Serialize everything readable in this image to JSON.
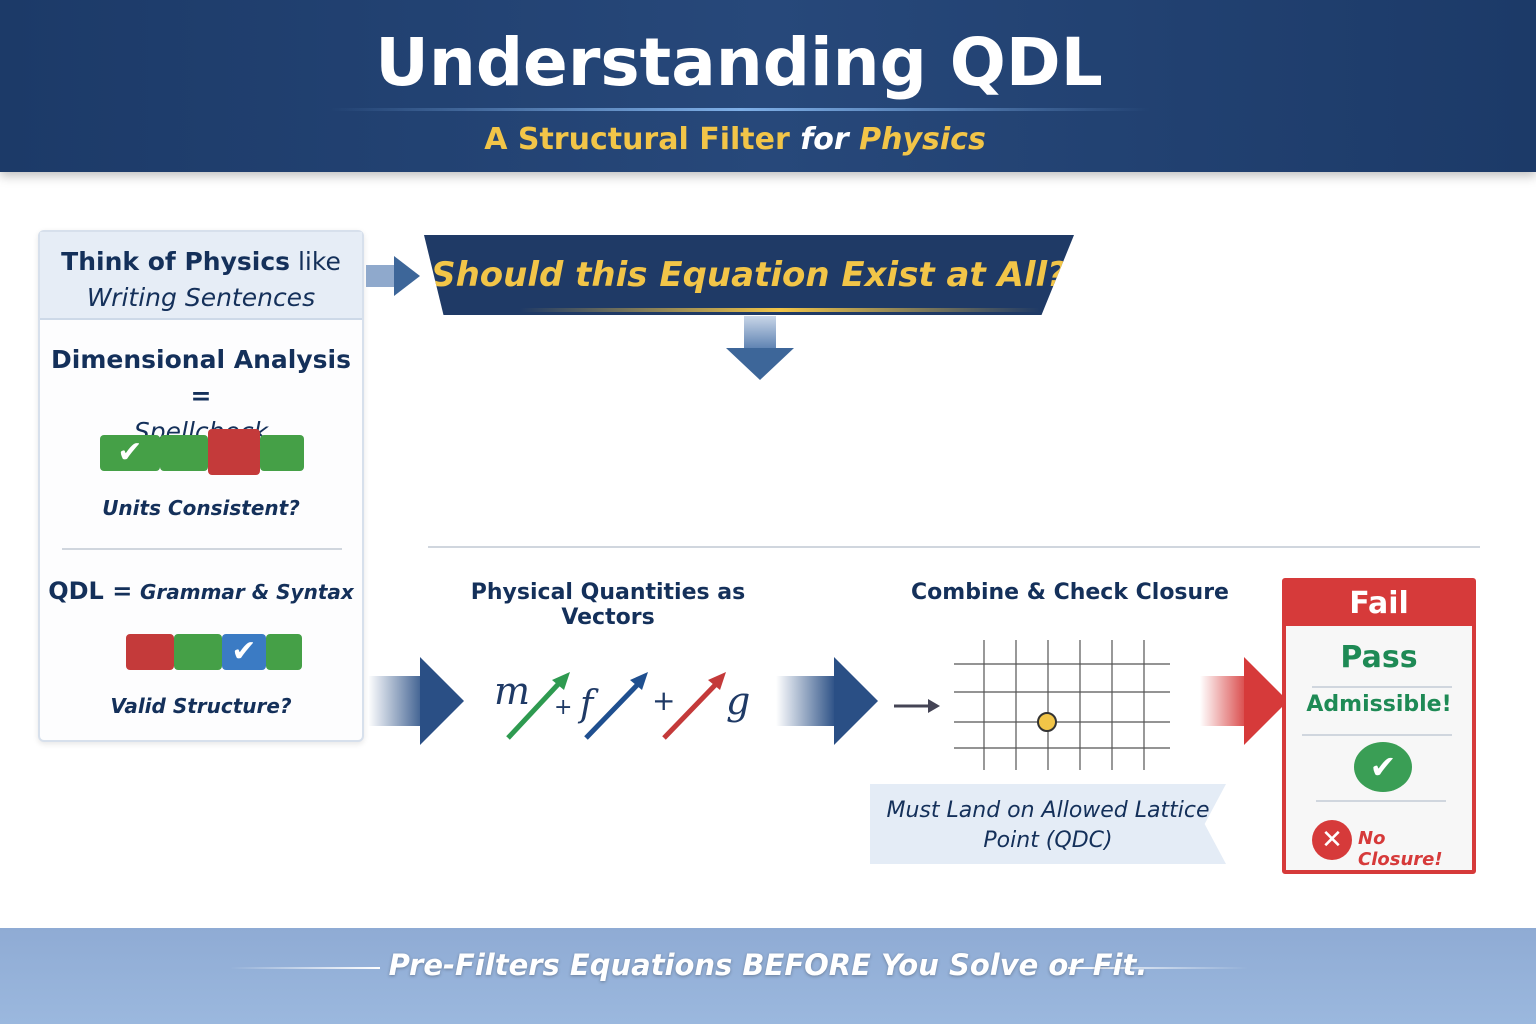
{
  "header": {
    "title": "Understanding QDL",
    "subtitle_a": "A Structural Filter",
    "subtitle_for": "for",
    "subtitle_b": "Physics"
  },
  "left_card": {
    "head_a": "Think of Physics",
    "head_b": "like",
    "head_c": "Writing Sentences",
    "dim_title": "Dimensional Analysis =",
    "dim_sub": "Spellcheck",
    "dim_caption": "Units Consistent?",
    "qdl_title": "QDL =",
    "qdl_sub": "Grammar & Syntax",
    "qdl_caption": "Valid Structure?"
  },
  "question": "Should this Equation Exist at All?",
  "stages": {
    "vectors_label": "Physical Quantities as Vectors",
    "vector_terms": [
      "m",
      "f",
      "g"
    ],
    "plus": "+",
    "closure_label": "Combine & Check Closure",
    "lattice_note": "Must Land on Allowed Lattice Point (QDC)"
  },
  "result": {
    "fail": "Fail",
    "pass": "Pass",
    "admissible": "Admissible!",
    "no_closure": "No Closure!"
  },
  "footer": "Pre-Filters Equations BEFORE You Solve or Fit.",
  "colors": {
    "navy": "#1f3a66",
    "gold": "#f2c548",
    "green": "#2e9a50",
    "red": "#d63a3a"
  }
}
